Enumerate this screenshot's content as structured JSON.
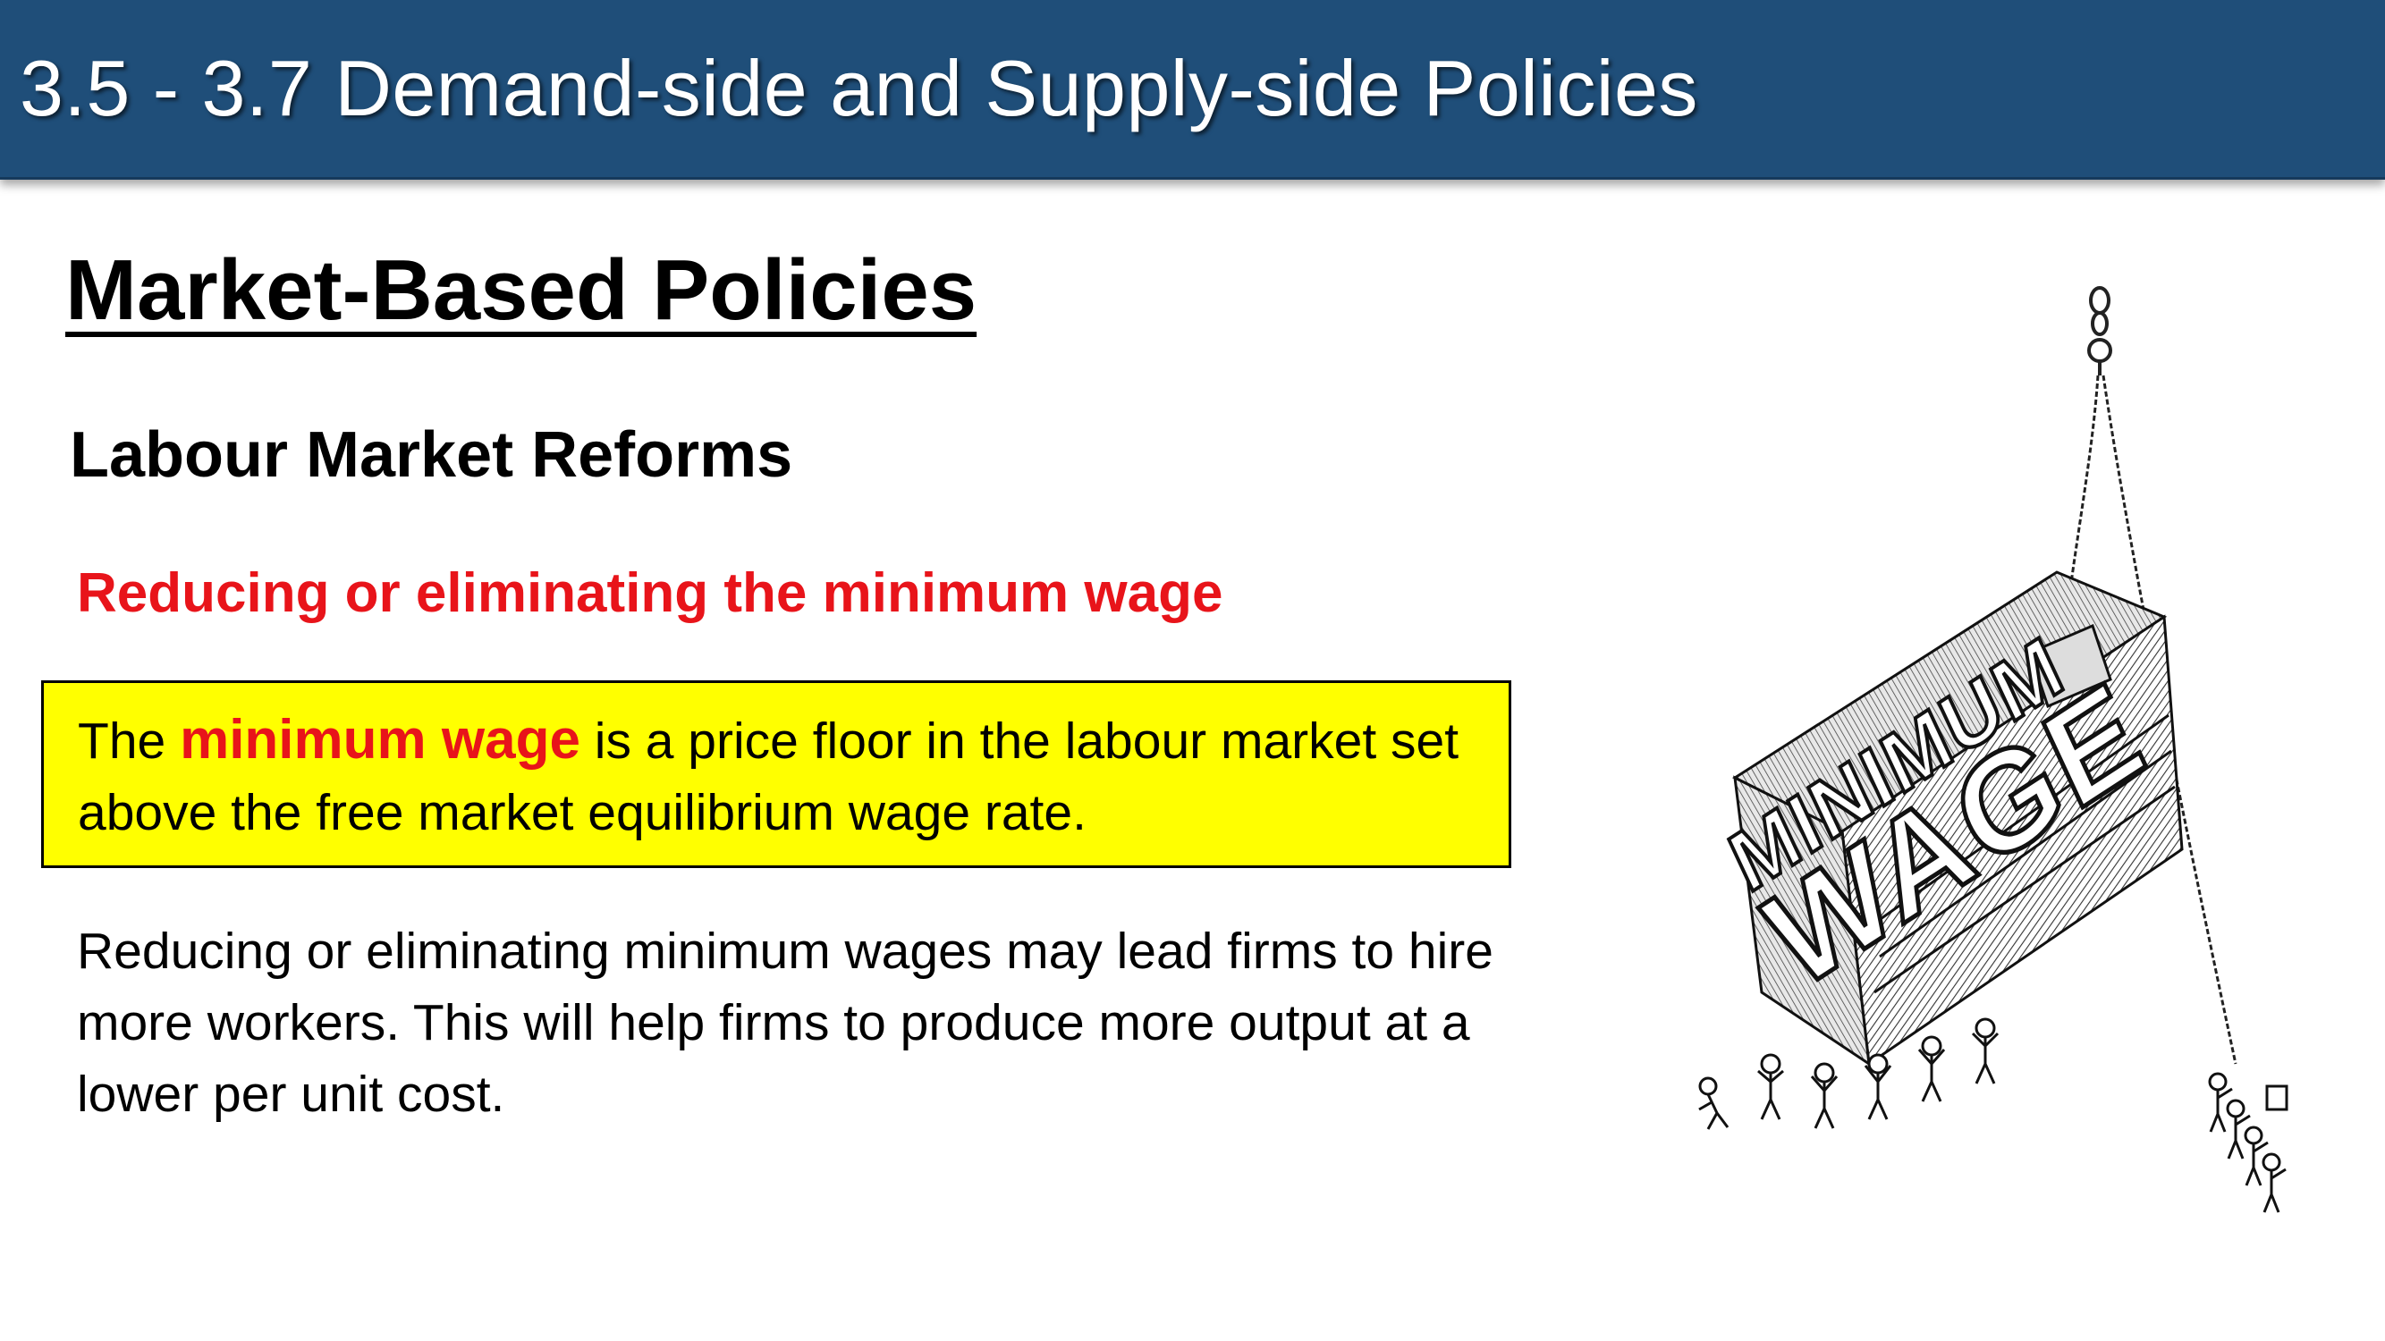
{
  "header": {
    "title": "3.5 - 3.7 Demand-side and Supply-side Policies"
  },
  "section": {
    "title": "Market-Based Policies",
    "subtitle": "Labour Market Reforms",
    "policy_heading": "Reducing or eliminating the minimum wage"
  },
  "definition": {
    "prefix": "The ",
    "term": "minimum wage",
    "suffix": " is a price floor in the labour market set above the free market equilibrium wage rate."
  },
  "explanation": {
    "text": "Reducing or eliminating minimum wages may lead firms to hire more workers. This will help firms to produce more output at a lower per unit cost."
  },
  "illustration": {
    "icon": "minimum-wage-weight-cartoon",
    "block_word_top": "MINIMUM",
    "block_word_bottom": "WAGE"
  },
  "colors": {
    "header_bg": "#1f4e79",
    "highlight_red": "#e8141a",
    "box_yellow": "#ffff00"
  }
}
